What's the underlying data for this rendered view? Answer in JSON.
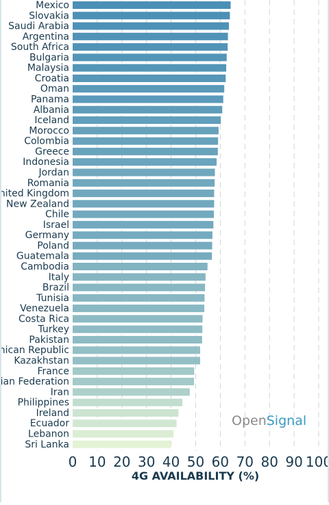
{
  "chart_data": {
    "type": "bar",
    "orientation": "horizontal",
    "categories": [
      "Mexico",
      "Slovakia",
      "Saudi Arabia",
      "Argentina",
      "South Africa",
      "Bulgaria",
      "Malaysia",
      "Croatia",
      "Oman",
      "Panama",
      "Albania",
      "Iceland",
      "Morocco",
      "Colombia",
      "Greece",
      "Indonesia",
      "Jordan",
      "Romania",
      "United Kingdom",
      "New Zealand",
      "Chile",
      "Israel",
      "Germany",
      "Poland",
      "Guatemala",
      "Cambodia",
      "Italy",
      "Brazil",
      "Tunisia",
      "Venezuela",
      "Costa Rica",
      "Turkey",
      "Pakistan",
      "Dominican Republic",
      "Kazakhstan",
      "France",
      "Russian Federation",
      "Iran",
      "Philippines",
      "Ireland",
      "Ecuador",
      "Lebanon",
      "Sri Lanka"
    ],
    "values": [
      64.2,
      63.9,
      63.5,
      63.1,
      63.0,
      62.6,
      62.4,
      62.2,
      61.6,
      61.2,
      60.8,
      60.2,
      59.3,
      59.1,
      59.0,
      58.5,
      57.8,
      57.7,
      57.5,
      57.5,
      57.4,
      57.2,
      56.8,
      56.7,
      56.6,
      54.8,
      54.0,
      53.8,
      53.6,
      53.5,
      52.8,
      52.7,
      52.6,
      51.8,
      51.8,
      49.4,
      49.3,
      47.6,
      44.6,
      43.0,
      42.2,
      41.0,
      40.0
    ],
    "xlabel": "4G AVAILABILITY (%)",
    "xlim": [
      0,
      100
    ],
    "xticks": [
      "0",
      "10",
      "20",
      "30",
      "40",
      "50",
      "60",
      "70",
      "80",
      "90",
      "100"
    ],
    "grid": "vertical dashed",
    "colors": {
      "high": "#4a8fb6",
      "low": "#e4f3d6",
      "axis_text": "#1a3a4e",
      "grid": "#cfd5d8"
    }
  },
  "watermark": {
    "brand_part1": "Open",
    "brand_part2": "Signal",
    "color1": "#8a8a8a",
    "color2": "#3a9ac4"
  }
}
